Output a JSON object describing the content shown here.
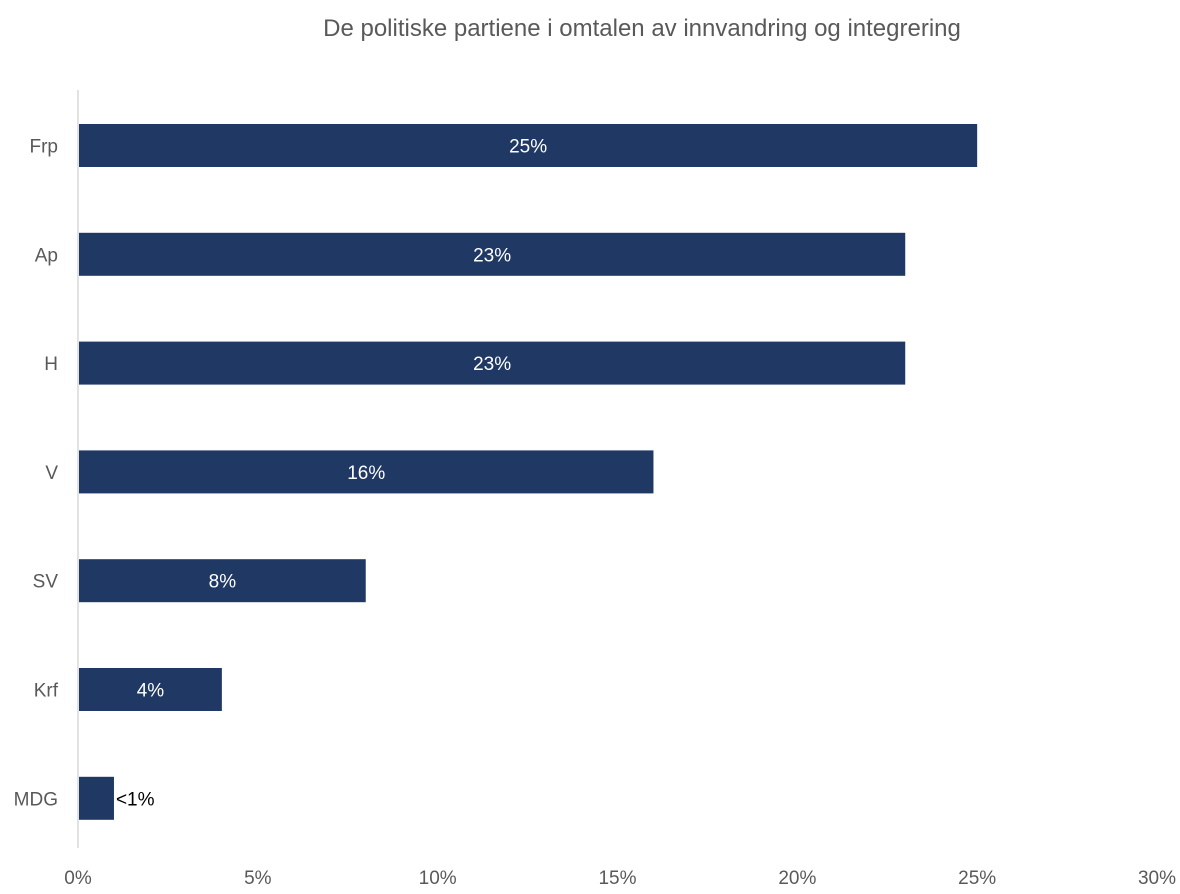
{
  "chart_data": {
    "type": "bar",
    "orientation": "horizontal",
    "title": "De politiske partiene i omtalen av innvandring og integrering",
    "categories": [
      "Frp",
      "Ap",
      "H",
      "V",
      "SV",
      "Krf",
      "MDG"
    ],
    "values": [
      25,
      23,
      23,
      16,
      8,
      4,
      1
    ],
    "data_labels": [
      "25%",
      "23%",
      "23%",
      "16%",
      "8%",
      "4%",
      "<1%"
    ],
    "xlim": [
      0,
      30
    ],
    "x_ticks": [
      0,
      5,
      10,
      15,
      20,
      25,
      30
    ],
    "x_tick_labels": [
      "0%",
      "5%",
      "10%",
      "15%",
      "20%",
      "25%",
      "30%"
    ],
    "xlabel": "",
    "ylabel": "",
    "grid": false,
    "legend": "none",
    "bar_color": "#1f3864",
    "axis_color": "#d9d9d9",
    "text_color": "#595959"
  }
}
